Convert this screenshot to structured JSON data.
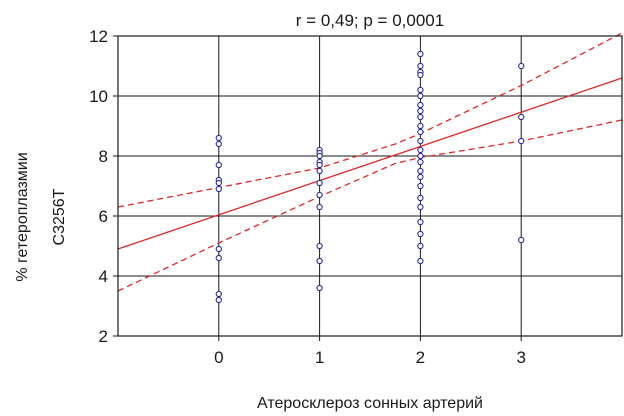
{
  "chart_data": {
    "type": "scatter",
    "title": "r = 0,49; p = 0,0001",
    "xlabel": "Атеросклероз сонных артерий",
    "ylabel_line1": "% гетероплазмии",
    "ylabel_line2": "C3256T",
    "xlim": [
      -1,
      4
    ],
    "ylim": [
      2,
      12
    ],
    "x_ticks": [
      0,
      1,
      2,
      3
    ],
    "x_tick_labels": [
      "0",
      "1",
      "2",
      "3"
    ],
    "y_ticks": [
      2,
      4,
      6,
      8,
      10,
      12
    ],
    "y_tick_labels": [
      "2",
      "4",
      "6",
      "8",
      "10",
      "12"
    ],
    "grid": true,
    "points": [
      {
        "x": 0,
        "y": 8.6
      },
      {
        "x": 0,
        "y": 8.4
      },
      {
        "x": 0,
        "y": 7.7
      },
      {
        "x": 0,
        "y": 7.2
      },
      {
        "x": 0,
        "y": 7.1
      },
      {
        "x": 0,
        "y": 6.9
      },
      {
        "x": 0,
        "y": 4.9
      },
      {
        "x": 0,
        "y": 4.6
      },
      {
        "x": 0,
        "y": 3.4
      },
      {
        "x": 0,
        "y": 3.2
      },
      {
        "x": 1,
        "y": 8.2
      },
      {
        "x": 1,
        "y": 8.1
      },
      {
        "x": 1,
        "y": 8.0
      },
      {
        "x": 1,
        "y": 7.8
      },
      {
        "x": 1,
        "y": 7.7
      },
      {
        "x": 1,
        "y": 7.5
      },
      {
        "x": 1,
        "y": 7.1
      },
      {
        "x": 1,
        "y": 6.7
      },
      {
        "x": 1,
        "y": 6.3
      },
      {
        "x": 1,
        "y": 5.0
      },
      {
        "x": 1,
        "y": 4.5
      },
      {
        "x": 1,
        "y": 3.6
      },
      {
        "x": 2,
        "y": 11.4
      },
      {
        "x": 2,
        "y": 11.0
      },
      {
        "x": 2,
        "y": 10.8
      },
      {
        "x": 2,
        "y": 10.7
      },
      {
        "x": 2,
        "y": 10.2
      },
      {
        "x": 2,
        "y": 10.0
      },
      {
        "x": 2,
        "y": 9.7
      },
      {
        "x": 2,
        "y": 9.5
      },
      {
        "x": 2,
        "y": 9.3
      },
      {
        "x": 2,
        "y": 9.0
      },
      {
        "x": 2,
        "y": 8.8
      },
      {
        "x": 2,
        "y": 8.5
      },
      {
        "x": 2,
        "y": 8.2
      },
      {
        "x": 2,
        "y": 8.0
      },
      {
        "x": 2,
        "y": 7.8
      },
      {
        "x": 2,
        "y": 7.5
      },
      {
        "x": 2,
        "y": 7.3
      },
      {
        "x": 2,
        "y": 7.0
      },
      {
        "x": 2,
        "y": 6.6
      },
      {
        "x": 2,
        "y": 6.3
      },
      {
        "x": 2,
        "y": 5.8
      },
      {
        "x": 2,
        "y": 5.4
      },
      {
        "x": 2,
        "y": 5.0
      },
      {
        "x": 2,
        "y": 4.5
      },
      {
        "x": 3,
        "y": 11.0
      },
      {
        "x": 3,
        "y": 9.3
      },
      {
        "x": 3,
        "y": 8.5
      },
      {
        "x": 3,
        "y": 5.2
      }
    ],
    "regression_line": {
      "x": [
        -1,
        4
      ],
      "y": [
        4.9,
        10.6
      ]
    },
    "confidence_upper": {
      "x": [
        -1,
        0,
        1,
        1.75,
        2,
        3,
        4
      ],
      "y": [
        6.3,
        6.95,
        7.6,
        8.4,
        8.75,
        10.35,
        12.1
      ]
    },
    "confidence_lower": {
      "x": [
        -1,
        0,
        1,
        1.75,
        2,
        3,
        4
      ],
      "y": [
        3.5,
        5.1,
        6.65,
        7.75,
        7.95,
        8.5,
        9.2
      ]
    },
    "colors": {
      "points": "#2b2b9e",
      "fit_line": "#e0262b",
      "confidence": "#e0262b",
      "grid": "#1a1a1a",
      "axes": "#1a1a1a"
    }
  }
}
